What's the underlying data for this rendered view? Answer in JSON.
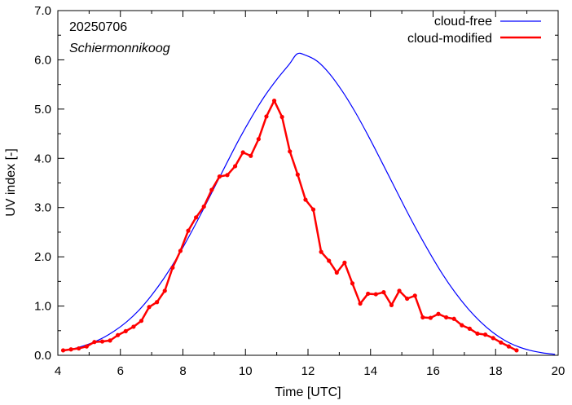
{
  "chart_data": {
    "type": "line",
    "annotations": [
      "20250706",
      "Schiermonnikoog"
    ],
    "xlabel": "Time  [UTC]",
    "ylabel": "UV index  [-]",
    "xlim": [
      4,
      20
    ],
    "ylim": [
      0,
      7
    ],
    "x_ticks": [
      4,
      6,
      8,
      10,
      12,
      14,
      16,
      18,
      20
    ],
    "y_ticks": [
      "0.0",
      "1.0",
      "2.0",
      "3.0",
      "4.0",
      "5.0",
      "6.0",
      "7.0"
    ],
    "legend_position": "top-right",
    "series": [
      {
        "name": "cloud-free",
        "color": "#0000ff",
        "x": [
          4.2,
          4.6,
          5.0,
          5.4,
          5.8,
          6.2,
          6.6,
          7.0,
          7.4,
          7.8,
          8.2,
          8.6,
          9.0,
          9.4,
          9.8,
          10.2,
          10.6,
          11.0,
          11.4,
          11.65,
          11.9,
          12.3,
          12.7,
          13.1,
          13.5,
          13.9,
          14.3,
          14.7,
          15.1,
          15.5,
          15.9,
          16.3,
          16.7,
          17.1,
          17.5,
          17.9,
          18.3,
          18.7,
          19.1,
          19.5,
          19.9
        ],
        "values": [
          0.09,
          0.15,
          0.23,
          0.34,
          0.49,
          0.68,
          0.92,
          1.22,
          1.57,
          1.97,
          2.42,
          2.9,
          3.4,
          3.9,
          4.39,
          4.84,
          5.25,
          5.6,
          5.91,
          6.12,
          6.1,
          5.97,
          5.71,
          5.36,
          4.95,
          4.49,
          4.0,
          3.5,
          3.0,
          2.52,
          2.07,
          1.65,
          1.28,
          0.96,
          0.69,
          0.47,
          0.3,
          0.18,
          0.1,
          0.05,
          0.02
        ]
      },
      {
        "name": "cloud-modified",
        "color": "#ff0000",
        "x": [
          4.17,
          4.42,
          4.67,
          4.92,
          5.17,
          5.42,
          5.67,
          5.92,
          6.17,
          6.42,
          6.67,
          6.92,
          7.17,
          7.42,
          7.67,
          7.92,
          8.17,
          8.42,
          8.67,
          8.92,
          9.17,
          9.42,
          9.67,
          9.92,
          10.17,
          10.42,
          10.67,
          10.92,
          11.17,
          11.42,
          11.67,
          11.92,
          12.17,
          12.42,
          12.67,
          12.92,
          13.17,
          13.42,
          13.67,
          13.92,
          14.17,
          14.42,
          14.67,
          14.92,
          15.17,
          15.42,
          15.67,
          15.92,
          16.17,
          16.42,
          16.67,
          16.92,
          17.17,
          17.42,
          17.67,
          17.92,
          18.17,
          18.42,
          18.67
        ],
        "values": [
          0.1,
          0.12,
          0.14,
          0.18,
          0.27,
          0.28,
          0.3,
          0.41,
          0.49,
          0.58,
          0.7,
          0.98,
          1.08,
          1.31,
          1.78,
          2.12,
          2.53,
          2.8,
          3.02,
          3.36,
          3.63,
          3.66,
          3.84,
          4.12,
          4.05,
          4.39,
          4.85,
          5.17,
          4.84,
          4.14,
          3.67,
          3.16,
          2.96,
          2.1,
          1.92,
          1.68,
          1.88,
          1.46,
          1.05,
          1.25,
          1.24,
          1.28,
          1.02,
          1.31,
          1.15,
          1.21,
          0.77,
          0.76,
          0.84,
          0.77,
          0.74,
          0.61,
          0.54,
          0.44,
          0.42,
          0.35,
          0.26,
          0.18,
          0.1
        ]
      }
    ]
  }
}
